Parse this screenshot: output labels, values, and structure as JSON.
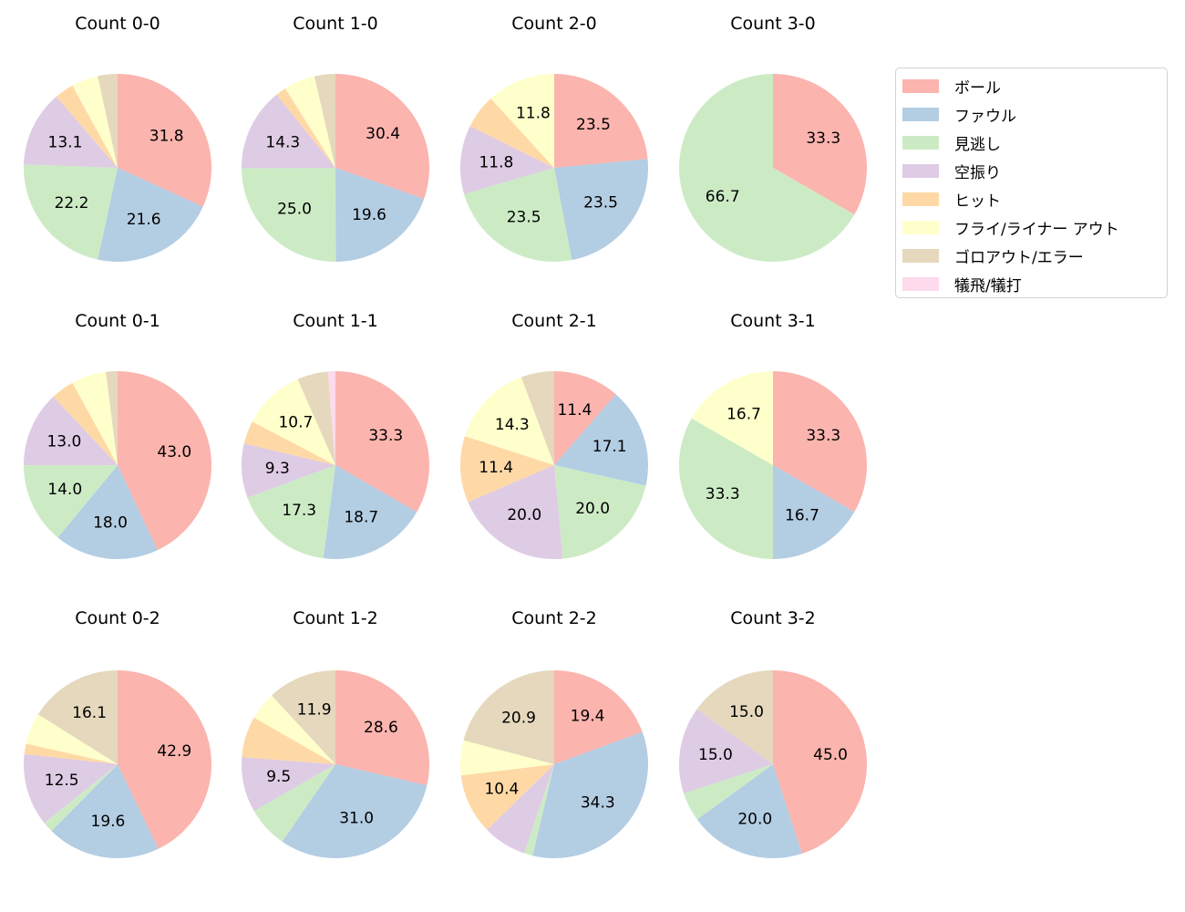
{
  "figure": {
    "background": "#ffffff"
  },
  "legend": {
    "position": "top-right",
    "border_color": "#d2d2d2",
    "items": [
      {
        "id": "ball",
        "label": "ボール",
        "color": "#fbb4ae"
      },
      {
        "id": "foul",
        "label": "ファウル",
        "color": "#b3cde3"
      },
      {
        "id": "called-strike",
        "label": "見逃し",
        "color": "#ccebc5"
      },
      {
        "id": "swinging-strike",
        "label": "空振り",
        "color": "#decbe4"
      },
      {
        "id": "hit",
        "label": "ヒット",
        "color": "#fed9a6"
      },
      {
        "id": "fly-liner-out",
        "label": "フライ/ライナー アウト",
        "color": "#ffffcc"
      },
      {
        "id": "groundout-error",
        "label": "ゴロアウト/エラー",
        "color": "#e5d8bd"
      },
      {
        "id": "sacrifice",
        "label": "犠飛/犠打",
        "color": "#fddaec"
      }
    ]
  },
  "chart_data": [
    {
      "type": "pie",
      "title": "Count 0-0",
      "start_angle": 90,
      "direction": "clockwise",
      "units": "percent",
      "slices": [
        {
          "id": "ball",
          "category": "ボール",
          "value": 31.8,
          "label": "31.8"
        },
        {
          "id": "foul",
          "category": "ファウル",
          "value": 21.6,
          "label": "21.6"
        },
        {
          "id": "called-strike",
          "category": "見逃し",
          "value": 22.2,
          "label": "22.2"
        },
        {
          "id": "swinging-strike",
          "category": "空振り",
          "value": 13.1,
          "label": "13.1"
        },
        {
          "id": "hit",
          "category": "ヒット",
          "value": 3.3,
          "label": ""
        },
        {
          "id": "fly-liner-out",
          "category": "フライ/ライナー アウト",
          "value": 4.6,
          "label": ""
        },
        {
          "id": "groundout-error",
          "category": "ゴロアウト/エラー",
          "value": 3.4,
          "label": ""
        }
      ]
    },
    {
      "type": "pie",
      "title": "Count 1-0",
      "start_angle": 90,
      "direction": "clockwise",
      "units": "percent",
      "slices": [
        {
          "id": "ball",
          "category": "ボール",
          "value": 30.4,
          "label": "30.4"
        },
        {
          "id": "foul",
          "category": "ファウル",
          "value": 19.6,
          "label": "19.6"
        },
        {
          "id": "called-strike",
          "category": "見逃し",
          "value": 25.0,
          "label": "25.0"
        },
        {
          "id": "swinging-strike",
          "category": "空振り",
          "value": 14.3,
          "label": "14.3"
        },
        {
          "id": "hit",
          "category": "ヒット",
          "value": 1.8,
          "label": ""
        },
        {
          "id": "fly-liner-out",
          "category": "フライ/ライナー アウト",
          "value": 5.4,
          "label": ""
        },
        {
          "id": "groundout-error",
          "category": "ゴロアウト/エラー",
          "value": 3.6,
          "label": ""
        }
      ]
    },
    {
      "type": "pie",
      "title": "Count 2-0",
      "start_angle": 90,
      "direction": "clockwise",
      "units": "percent",
      "slices": [
        {
          "id": "ball",
          "category": "ボール",
          "value": 23.5,
          "label": "23.5"
        },
        {
          "id": "foul",
          "category": "ファウル",
          "value": 23.5,
          "label": "23.5"
        },
        {
          "id": "called-strike",
          "category": "見逃し",
          "value": 23.5,
          "label": "23.5"
        },
        {
          "id": "swinging-strike",
          "category": "空振り",
          "value": 11.8,
          "label": "11.8"
        },
        {
          "id": "hit",
          "category": "ヒット",
          "value": 5.9,
          "label": ""
        },
        {
          "id": "fly-liner-out",
          "category": "フライ/ライナー アウト",
          "value": 11.8,
          "label": "11.8"
        }
      ]
    },
    {
      "type": "pie",
      "title": "Count 3-0",
      "start_angle": 90,
      "direction": "clockwise",
      "units": "percent",
      "slices": [
        {
          "id": "ball",
          "category": "ボール",
          "value": 33.3,
          "label": "33.3"
        },
        {
          "id": "called-strike",
          "category": "見逃し",
          "value": 66.7,
          "label": "66.7"
        }
      ]
    },
    {
      "type": "pie",
      "title": "Count 0-1",
      "start_angle": 90,
      "direction": "clockwise",
      "units": "percent",
      "slices": [
        {
          "id": "ball",
          "category": "ボール",
          "value": 43.0,
          "label": "43.0"
        },
        {
          "id": "foul",
          "category": "ファウル",
          "value": 18.0,
          "label": "18.0"
        },
        {
          "id": "called-strike",
          "category": "見逃し",
          "value": 14.0,
          "label": "14.0"
        },
        {
          "id": "swinging-strike",
          "category": "空振り",
          "value": 13.0,
          "label": "13.0"
        },
        {
          "id": "hit",
          "category": "ヒット",
          "value": 4.0,
          "label": ""
        },
        {
          "id": "fly-liner-out",
          "category": "フライ/ライナー アウト",
          "value": 6.0,
          "label": ""
        },
        {
          "id": "groundout-error",
          "category": "ゴロアウト/エラー",
          "value": 2.0,
          "label": ""
        }
      ]
    },
    {
      "type": "pie",
      "title": "Count 1-1",
      "start_angle": 90,
      "direction": "clockwise",
      "units": "percent",
      "slices": [
        {
          "id": "ball",
          "category": "ボール",
          "value": 33.3,
          "label": "33.3"
        },
        {
          "id": "foul",
          "category": "ファウル",
          "value": 18.7,
          "label": "18.7"
        },
        {
          "id": "called-strike",
          "category": "見逃し",
          "value": 17.3,
          "label": "17.3"
        },
        {
          "id": "swinging-strike",
          "category": "空振り",
          "value": 9.3,
          "label": "9.3"
        },
        {
          "id": "hit",
          "category": "ヒット",
          "value": 4.0,
          "label": ""
        },
        {
          "id": "fly-liner-out",
          "category": "フライ/ライナー アウト",
          "value": 10.7,
          "label": "10.7"
        },
        {
          "id": "groundout-error",
          "category": "ゴロアウト/エラー",
          "value": 5.3,
          "label": ""
        },
        {
          "id": "sacrifice",
          "category": "犠飛/犠打",
          "value": 1.3,
          "label": ""
        }
      ]
    },
    {
      "type": "pie",
      "title": "Count 2-1",
      "start_angle": 90,
      "direction": "clockwise",
      "units": "percent",
      "slices": [
        {
          "id": "ball",
          "category": "ボール",
          "value": 11.4,
          "label": "11.4"
        },
        {
          "id": "foul",
          "category": "ファウル",
          "value": 17.1,
          "label": "17.1"
        },
        {
          "id": "called-strike",
          "category": "見逃し",
          "value": 20.0,
          "label": "20.0"
        },
        {
          "id": "swinging-strike",
          "category": "空振り",
          "value": 20.0,
          "label": "20.0"
        },
        {
          "id": "hit",
          "category": "ヒット",
          "value": 11.4,
          "label": "11.4"
        },
        {
          "id": "fly-liner-out",
          "category": "フライ/ライナー アウト",
          "value": 14.3,
          "label": "14.3"
        },
        {
          "id": "groundout-error",
          "category": "ゴロアウト/エラー",
          "value": 5.7,
          "label": ""
        }
      ]
    },
    {
      "type": "pie",
      "title": "Count 3-1",
      "start_angle": 90,
      "direction": "clockwise",
      "units": "percent",
      "slices": [
        {
          "id": "ball",
          "category": "ボール",
          "value": 33.3,
          "label": "33.3"
        },
        {
          "id": "foul",
          "category": "ファウル",
          "value": 16.7,
          "label": "16.7"
        },
        {
          "id": "called-strike",
          "category": "見逃し",
          "value": 33.3,
          "label": "33.3"
        },
        {
          "id": "fly-liner-out",
          "category": "フライ/ライナー アウト",
          "value": 16.7,
          "label": "16.7"
        }
      ]
    },
    {
      "type": "pie",
      "title": "Count 0-2",
      "start_angle": 90,
      "direction": "clockwise",
      "units": "percent",
      "slices": [
        {
          "id": "ball",
          "category": "ボール",
          "value": 42.9,
          "label": "42.9"
        },
        {
          "id": "foul",
          "category": "ファウル",
          "value": 19.6,
          "label": "19.6"
        },
        {
          "id": "called-strike",
          "category": "見逃し",
          "value": 1.8,
          "label": ""
        },
        {
          "id": "swinging-strike",
          "category": "空振り",
          "value": 12.5,
          "label": "12.5"
        },
        {
          "id": "hit",
          "category": "ヒット",
          "value": 1.8,
          "label": ""
        },
        {
          "id": "fly-liner-out",
          "category": "フライ/ライナー アウト",
          "value": 5.4,
          "label": ""
        },
        {
          "id": "groundout-error",
          "category": "ゴロアウト/エラー",
          "value": 16.1,
          "label": "16.1"
        }
      ]
    },
    {
      "type": "pie",
      "title": "Count 1-2",
      "start_angle": 90,
      "direction": "clockwise",
      "units": "percent",
      "slices": [
        {
          "id": "ball",
          "category": "ボール",
          "value": 28.6,
          "label": "28.6"
        },
        {
          "id": "foul",
          "category": "ファウル",
          "value": 31.0,
          "label": "31.0"
        },
        {
          "id": "called-strike",
          "category": "見逃し",
          "value": 7.1,
          "label": ""
        },
        {
          "id": "swinging-strike",
          "category": "空振り",
          "value": 9.5,
          "label": "9.5"
        },
        {
          "id": "hit",
          "category": "ヒット",
          "value": 7.1,
          "label": ""
        },
        {
          "id": "fly-liner-out",
          "category": "フライ/ライナー アウト",
          "value": 4.8,
          "label": ""
        },
        {
          "id": "groundout-error",
          "category": "ゴロアウト/エラー",
          "value": 11.9,
          "label": "11.9"
        }
      ]
    },
    {
      "type": "pie",
      "title": "Count 2-2",
      "start_angle": 90,
      "direction": "clockwise",
      "units": "percent",
      "slices": [
        {
          "id": "ball",
          "category": "ボール",
          "value": 19.4,
          "label": "19.4"
        },
        {
          "id": "foul",
          "category": "ファウル",
          "value": 34.3,
          "label": "34.3"
        },
        {
          "id": "called-strike",
          "category": "見逃し",
          "value": 1.5,
          "label": ""
        },
        {
          "id": "swinging-strike",
          "category": "空振り",
          "value": 7.5,
          "label": ""
        },
        {
          "id": "hit",
          "category": "ヒット",
          "value": 10.4,
          "label": "10.4"
        },
        {
          "id": "fly-liner-out",
          "category": "フライ/ライナー アウト",
          "value": 6.0,
          "label": ""
        },
        {
          "id": "groundout-error",
          "category": "ゴロアウト/エラー",
          "value": 20.9,
          "label": "20.9"
        }
      ]
    },
    {
      "type": "pie",
      "title": "Count 3-2",
      "start_angle": 90,
      "direction": "clockwise",
      "units": "percent",
      "slices": [
        {
          "id": "ball",
          "category": "ボール",
          "value": 45.0,
          "label": "45.0"
        },
        {
          "id": "foul",
          "category": "ファウル",
          "value": 20.0,
          "label": "20.0"
        },
        {
          "id": "called-strike",
          "category": "見逃し",
          "value": 5.0,
          "label": ""
        },
        {
          "id": "swinging-strike",
          "category": "空振り",
          "value": 15.0,
          "label": "15.0"
        },
        {
          "id": "groundout-error",
          "category": "ゴロアウト/エラー",
          "value": 15.0,
          "label": "15.0"
        }
      ]
    }
  ]
}
